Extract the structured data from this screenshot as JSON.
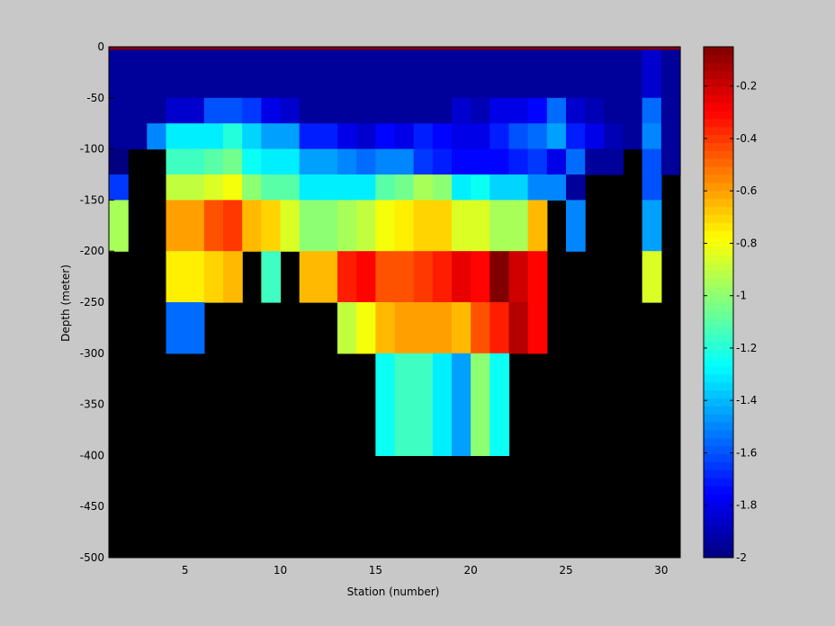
{
  "chart_data": {
    "type": "heatmap",
    "title": "",
    "xlabel": "Station (number)",
    "ylabel": "Depth (meter)",
    "xlim": [
      1,
      31
    ],
    "ylim": [
      -500,
      0
    ],
    "xticks": [
      5,
      10,
      15,
      20,
      25,
      30
    ],
    "yticks": [
      0,
      -50,
      -100,
      -150,
      -200,
      -250,
      -300,
      -350,
      -400,
      -450,
      -500
    ],
    "colorbar": {
      "colormap": "jet",
      "range": [
        -2,
        -0.05
      ],
      "ticks": [
        -0.2,
        -0.4,
        -0.6,
        -0.8,
        -1,
        -1.2,
        -1.4,
        -1.6,
        -1.8,
        -2
      ]
    },
    "background_color": "#000000",
    "x_edges": [
      1,
      2,
      3,
      4,
      5,
      6,
      7,
      8,
      9,
      10,
      11,
      12,
      13,
      14,
      15,
      16,
      17,
      18,
      19,
      20,
      21,
      22,
      23,
      24,
      25,
      26,
      27,
      28,
      29,
      30,
      31
    ],
    "depth_edges": [
      0,
      -3,
      -50,
      -75,
      -100,
      -125,
      -150,
      -200,
      -250,
      -300,
      -400,
      -500
    ],
    "rows": [
      [
        -0.05,
        -0.05,
        -0.05,
        -0.05,
        -0.05,
        -0.05,
        -0.05,
        -0.05,
        -0.05,
        -0.05,
        -0.05,
        -0.05,
        -0.05,
        -0.05,
        -0.05,
        -0.05,
        -0.05,
        -0.05,
        -0.05,
        -0.05,
        -0.05,
        -0.05,
        -0.05,
        -0.05,
        -0.05,
        -0.05,
        -0.05,
        -0.05,
        -0.05,
        -0.05
      ],
      [
        -1.95,
        -1.95,
        -1.95,
        -1.95,
        -1.95,
        -1.95,
        -1.95,
        -1.95,
        -1.95,
        -1.95,
        -1.95,
        -1.95,
        -1.95,
        -1.95,
        -1.95,
        -1.95,
        -1.95,
        -1.95,
        -1.95,
        -1.95,
        -1.95,
        -1.95,
        -1.95,
        -1.95,
        -1.95,
        -1.95,
        -1.95,
        -1.95,
        -1.85,
        -1.95
      ],
      [
        -1.95,
        -1.95,
        -1.95,
        -1.85,
        -1.85,
        -1.6,
        -1.6,
        -1.65,
        -1.8,
        -1.85,
        -1.95,
        -1.95,
        -1.95,
        -1.95,
        -1.95,
        -1.95,
        -1.95,
        -1.95,
        -1.85,
        -1.9,
        -1.8,
        -1.8,
        -1.75,
        -1.55,
        -1.85,
        -1.9,
        -1.95,
        -1.95,
        -1.55,
        -1.95
      ],
      [
        -1.95,
        -1.95,
        -1.5,
        -1.3,
        -1.3,
        -1.3,
        -1.2,
        -1.35,
        -1.45,
        -1.45,
        -1.7,
        -1.7,
        -1.8,
        -1.85,
        -1.75,
        -1.8,
        -1.7,
        -1.75,
        -1.8,
        -1.8,
        -1.7,
        -1.6,
        -1.55,
        -1.45,
        -1.7,
        -1.8,
        -1.9,
        -1.95,
        -1.5,
        -1.95
      ],
      [
        -2.0,
        null,
        null,
        -1.15,
        -1.15,
        -1.1,
        -1.05,
        -1.25,
        -1.3,
        -1.3,
        -1.45,
        -1.45,
        -1.5,
        -1.55,
        -1.5,
        -1.5,
        -1.65,
        -1.7,
        -1.75,
        -1.75,
        -1.75,
        -1.7,
        -1.65,
        -1.8,
        -1.55,
        -1.95,
        -1.95,
        null,
        -1.6,
        -1.95
      ],
      [
        -1.65,
        null,
        null,
        -0.9,
        -0.9,
        -0.85,
        -0.8,
        -1.0,
        -1.1,
        -1.1,
        -1.3,
        -1.3,
        -1.3,
        -1.3,
        -1.1,
        -1.05,
        -0.95,
        -1.0,
        -1.3,
        -1.25,
        -1.35,
        -1.35,
        -1.5,
        -1.5,
        -1.95,
        null,
        null,
        null,
        -1.6,
        null
      ],
      [
        -0.95,
        null,
        null,
        -0.6,
        -0.6,
        -0.45,
        -0.4,
        -0.65,
        -0.7,
        -0.85,
        -1.0,
        -1.0,
        -0.95,
        -0.9,
        -0.8,
        -0.75,
        -0.7,
        -0.7,
        -0.85,
        -0.85,
        -0.95,
        -0.95,
        -0.65,
        null,
        -1.5,
        null,
        null,
        null,
        -1.45,
        null
      ],
      [
        null,
        null,
        null,
        -0.75,
        -0.75,
        -0.7,
        -0.65,
        null,
        -1.15,
        null,
        -0.65,
        -0.65,
        -0.35,
        -0.3,
        -0.45,
        -0.45,
        -0.4,
        -0.35,
        -0.25,
        -0.3,
        -0.05,
        -0.2,
        -0.3,
        null,
        null,
        null,
        null,
        null,
        -0.85,
        null
      ],
      [
        null,
        null,
        null,
        -1.55,
        -1.55,
        null,
        null,
        null,
        null,
        null,
        null,
        null,
        -0.9,
        -0.8,
        -0.65,
        -0.6,
        -0.6,
        -0.6,
        -0.65,
        -0.45,
        -0.35,
        -0.15,
        -0.3,
        null,
        null,
        null,
        null,
        null,
        null,
        null
      ],
      [
        null,
        null,
        null,
        null,
        null,
        null,
        null,
        null,
        null,
        null,
        null,
        null,
        null,
        null,
        -1.25,
        -1.15,
        -1.15,
        -1.3,
        -1.45,
        -1.0,
        -1.25,
        null,
        null,
        null,
        null,
        null,
        null,
        null,
        null,
        null
      ],
      [
        null,
        null,
        null,
        null,
        null,
        null,
        null,
        null,
        null,
        null,
        null,
        null,
        null,
        null,
        null,
        null,
        null,
        null,
        null,
        null,
        null,
        null,
        null,
        null,
        null,
        null,
        null,
        null,
        null,
        null
      ]
    ]
  }
}
